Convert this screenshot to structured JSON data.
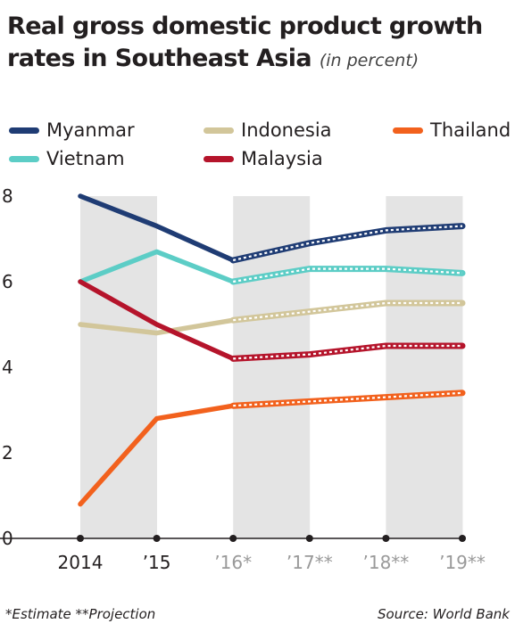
{
  "title_main": "Real gross domestic product growth rates in Southeast Asia",
  "title_sub": "(in percent)",
  "footnote": "*Estimate  **Projection",
  "source": "Source: World Bank",
  "chart_data": {
    "type": "line",
    "categories": [
      "2014",
      "’15",
      "’16*",
      "’17**",
      "’18**",
      "’19**"
    ],
    "estimated_from_index": 2,
    "ylim": [
      0,
      8
    ],
    "yticks": [
      0,
      2,
      4,
      6,
      8
    ],
    "grid": false,
    "shaded_columns": true,
    "legend_position": "top",
    "series": [
      {
        "name": "Myanmar",
        "color": "#1f3c74",
        "values": [
          8.0,
          7.3,
          6.5,
          6.9,
          7.2,
          7.3
        ]
      },
      {
        "name": "Vietnam",
        "color": "#5ccdc6",
        "values": [
          6.0,
          6.7,
          6.0,
          6.3,
          6.3,
          6.2
        ]
      },
      {
        "name": "Indonesia",
        "color": "#d2c69a",
        "values": [
          5.0,
          4.8,
          5.1,
          5.3,
          5.5,
          5.5
        ]
      },
      {
        "name": "Malaysia",
        "color": "#b5142b",
        "values": [
          6.0,
          5.0,
          4.2,
          4.3,
          4.5,
          4.5
        ]
      },
      {
        "name": "Thailand",
        "color": "#f2611d",
        "values": [
          0.8,
          2.8,
          3.1,
          3.2,
          3.3,
          3.4
        ]
      }
    ],
    "tick_colors": {
      "actual": "#231f20",
      "estimated": "#9a9a9a"
    }
  }
}
